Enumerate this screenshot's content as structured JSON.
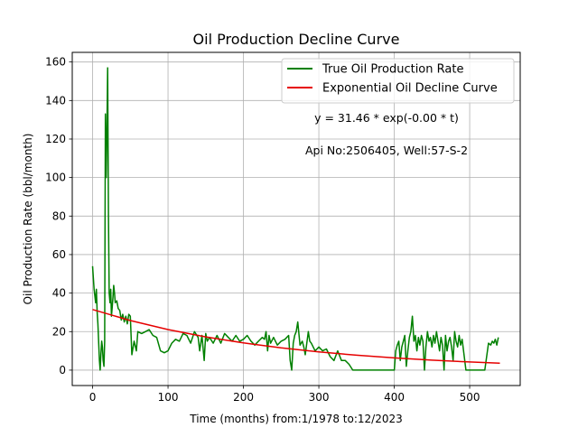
{
  "chart_data": {
    "type": "line",
    "title": "Oil Production Decline Curve",
    "xlabel": "Time (months) from:1/1978 to:12/2023",
    "ylabel": "Oil Production Rate (bbl/month)",
    "xlim": [
      -27,
      567
    ],
    "ylim": [
      -8,
      165
    ],
    "xticks": [
      0,
      100,
      200,
      300,
      400,
      500
    ],
    "yticks": [
      0,
      20,
      40,
      60,
      80,
      100,
      120,
      140,
      160
    ],
    "grid": true,
    "legend_position": "top-right",
    "series": [
      {
        "name": "True Oil Production Rate",
        "color": "#008000",
        "x": [
          0,
          2,
          4,
          5,
          6,
          7,
          8,
          9,
          10,
          11,
          12,
          13,
          14,
          15,
          16,
          17,
          18,
          19,
          20,
          21,
          22,
          23,
          24,
          25,
          26,
          27,
          28,
          29,
          30,
          32,
          34,
          36,
          38,
          40,
          42,
          44,
          46,
          48,
          50,
          52,
          55,
          58,
          60,
          65,
          70,
          75,
          80,
          85,
          90,
          95,
          100,
          105,
          110,
          115,
          120,
          125,
          130,
          135,
          140,
          142,
          145,
          148,
          150,
          152,
          155,
          160,
          165,
          170,
          175,
          180,
          185,
          190,
          195,
          200,
          205,
          210,
          215,
          220,
          225,
          228,
          230,
          232,
          234,
          236,
          240,
          245,
          250,
          255,
          260,
          262,
          264,
          266,
          268,
          270,
          272,
          275,
          278,
          280,
          282,
          284,
          286,
          288,
          290,
          295,
          300,
          305,
          310,
          315,
          320,
          325,
          330,
          335,
          340,
          345,
          350,
          355,
          360,
          365,
          370,
          375,
          380,
          385,
          390,
          395,
          400,
          402,
          404,
          406,
          408,
          410,
          412,
          414,
          416,
          418,
          420,
          422,
          424,
          426,
          428,
          430,
          432,
          434,
          436,
          438,
          440,
          442,
          444,
          446,
          448,
          450,
          452,
          454,
          456,
          458,
          460,
          462,
          464,
          466,
          468,
          470,
          472,
          474,
          476,
          478,
          480,
          482,
          484,
          486,
          488,
          490,
          495,
          500,
          505,
          510,
          515,
          520,
          525,
          528,
          530,
          532,
          534,
          536,
          538
        ],
        "values": [
          54,
          42,
          35,
          42,
          30,
          24,
          15,
          5,
          0,
          8,
          15,
          12,
          5,
          2,
          15,
          133,
          100,
          125,
          157,
          80,
          40,
          35,
          42,
          28,
          33,
          38,
          44,
          40,
          35,
          36,
          32,
          31,
          26,
          29,
          25,
          28,
          24,
          29,
          28,
          8,
          15,
          10,
          20,
          19,
          20,
          21,
          18,
          17,
          10,
          9,
          10,
          14,
          16,
          15,
          19,
          18,
          14,
          20,
          17,
          10,
          18,
          5,
          19,
          15,
          17,
          14,
          18,
          14,
          19,
          17,
          15,
          18,
          15,
          16,
          18,
          15,
          13,
          15,
          17,
          16,
          20,
          10,
          18,
          14,
          17,
          13,
          15,
          16,
          18,
          5,
          0,
          14,
          18,
          20,
          25,
          13,
          15,
          12,
          8,
          14,
          20,
          15,
          14,
          10,
          12,
          10,
          11,
          7,
          5,
          10,
          5,
          5,
          3,
          0,
          0,
          0,
          0,
          0,
          0,
          0,
          0,
          0,
          0,
          0,
          0,
          10,
          13,
          15,
          5,
          12,
          15,
          18,
          2,
          10,
          17,
          20,
          28,
          15,
          18,
          10,
          17,
          13,
          18,
          15,
          0,
          12,
          20,
          15,
          17,
          12,
          18,
          14,
          20,
          15,
          10,
          17,
          13,
          0,
          18,
          10,
          15,
          17,
          12,
          5,
          20,
          15,
          12,
          18,
          13,
          16,
          0,
          0,
          0,
          0,
          0,
          0,
          14,
          13,
          15,
          14,
          16,
          13,
          17
        ]
      },
      {
        "name": "Exponential Oil Decline Curve",
        "color": "#e60000",
        "x": [
          0,
          50,
          100,
          150,
          200,
          250,
          300,
          350,
          400,
          450,
          500,
          540
        ],
        "values": [
          31.46,
          25.75,
          21.08,
          17.25,
          14.12,
          11.56,
          9.46,
          7.74,
          6.34,
          5.19,
          4.25,
          3.58
        ]
      }
    ],
    "annotations": [
      "y = 31.46 * exp(-0.00 * t)",
      "Api No:2506405, Well:57-S-2"
    ]
  }
}
